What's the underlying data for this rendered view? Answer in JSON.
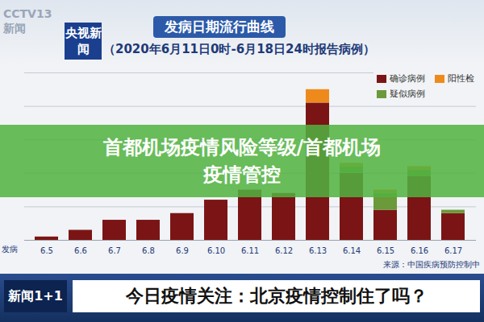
{
  "chart_data": {
    "type": "bar",
    "title": "发病日期流行曲线",
    "subtitle": "（2020年6月11日0时-6月18日24时报告病例）",
    "x_label": "发病",
    "source": "来源：中国疾病预防控制中",
    "categories": [
      "6.5",
      "6.6",
      "6.7",
      "6.8",
      "6.9",
      "6.10",
      "6.11",
      "6.12",
      "6.13",
      "6.14",
      "6.15",
      "6.16",
      "6.17"
    ],
    "series": [
      {
        "name": "确诊病例",
        "color": "#7b1515",
        "values": [
          1,
          3,
          6,
          6,
          8,
          12,
          15,
          14,
          41,
          20,
          9,
          19,
          8
        ]
      },
      {
        "name": "阳性检",
        "color": "#ee8a1c",
        "values": [
          0,
          0,
          0,
          0,
          0,
          0,
          0,
          0,
          4,
          1,
          1,
          1,
          0
        ]
      },
      {
        "name": "疑似病例",
        "color": "#6a9a3a",
        "values": [
          0,
          0,
          0,
          0,
          0,
          0,
          0,
          0,
          0,
          2,
          5,
          2,
          1
        ]
      }
    ],
    "stacked": true,
    "ylim": [
      0,
      50
    ],
    "yticks": [
      0,
      10,
      20,
      30,
      40,
      50
    ],
    "grid": true,
    "tick_labels": "x",
    "legend": "top-right"
  },
  "overlay": {
    "logos": [
      "CCTV13 新闻",
      "央视新闻"
    ],
    "banner": "首都机场疫情风险等级/首都机场疫情管控",
    "program": "新闻1+1",
    "headline": "今日疫情关注：北京疫情控制住了吗？"
  }
}
